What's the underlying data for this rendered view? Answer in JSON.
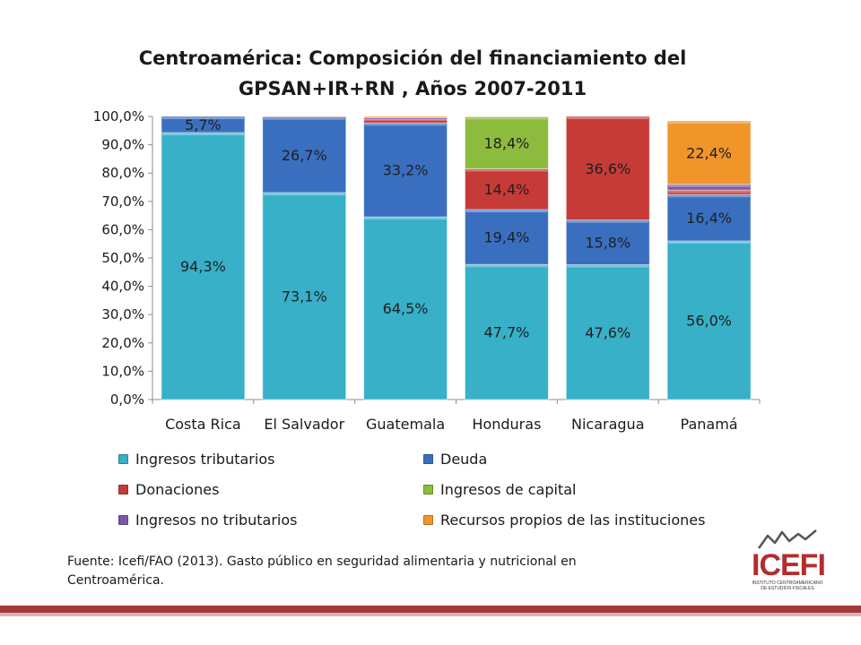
{
  "title_line1": "Centroamérica: Composición del financiamiento del",
  "title_line2": "GPSAN+IR+RN , Años 2007-2011",
  "source_text": "Fuente: Icefi/FAO (2013). Gasto público en seguridad alimentaria y nutricional en Centroamérica.",
  "logo": {
    "text": "ICEFI",
    "subtitle": "INSTITUTO CENTROAMERICANO DE ESTUDIOS FISCALES"
  },
  "legend": [
    {
      "label": "Ingresos tributarios",
      "color": "#37b0c8"
    },
    {
      "label": "Deuda",
      "color": "#3a6fc0"
    },
    {
      "label": "Donaciones",
      "color": "#c63b38"
    },
    {
      "label": "Ingresos de capital",
      "color": "#8dbb3e"
    },
    {
      "label": "Ingresos no tributarios",
      "color": "#7c59a8"
    },
    {
      "label": "Recursos propios de las instituciones",
      "color": "#f0952a"
    }
  ],
  "chart_data": {
    "type": "bar",
    "stacked": true,
    "title": "Centroamérica: Composición del financiamiento del GPSAN+IR+RN , Años 2007-2011",
    "categories": [
      "Costa Rica",
      "El Salvador",
      "Guatemala",
      "Honduras",
      "Nicaragua",
      "Panamá"
    ],
    "y_ticks": [
      "0,0%",
      "10,0%",
      "20,0%",
      "30,0%",
      "40,0%",
      "50,0%",
      "60,0%",
      "70,0%",
      "80,0%",
      "90,0%",
      "100,0%"
    ],
    "ylim": [
      0,
      100
    ],
    "series": [
      {
        "name": "Ingresos tributarios",
        "color": "#37b0c8",
        "values": [
          94.3,
          73.1,
          64.5,
          47.7,
          47.6,
          56.0
        ],
        "labels": [
          "94,3%",
          "73,1%",
          "64,5%",
          "47,7%",
          "47,6%",
          "56,0%"
        ]
      },
      {
        "name": "Deuda",
        "color": "#3a6fc0",
        "values": [
          5.7,
          26.7,
          33.2,
          19.4,
          15.8,
          16.4
        ],
        "labels": [
          "5,7%",
          "26,7%",
          "33,2%",
          "19,4%",
          "15,8%",
          "16,4%"
        ]
      },
      {
        "name": "Donaciones",
        "color": "#c63b38",
        "values": [
          0,
          0.2,
          1.1,
          14.4,
          36.6,
          1.6
        ],
        "labels": [
          "",
          "",
          "",
          "14,4%",
          "36,6%",
          ""
        ]
      },
      {
        "name": "Ingresos de capital",
        "color": "#8dbb3e",
        "values": [
          0,
          0,
          0,
          18.4,
          0,
          0
        ],
        "labels": [
          "",
          "",
          "",
          "18,4%",
          "",
          ""
        ]
      },
      {
        "name": "Ingresos no tributarios",
        "color": "#7c59a8",
        "values": [
          0,
          0,
          0.7,
          0,
          0,
          2.0
        ],
        "labels": [
          "",
          "",
          "",
          "",
          "",
          ""
        ]
      },
      {
        "name": "Recursos propios de las instituciones",
        "color": "#f0952a",
        "values": [
          0,
          0,
          0.5,
          0.1,
          0,
          22.4
        ],
        "labels": [
          "",
          "",
          "",
          "",
          "",
          "22,4%"
        ]
      }
    ]
  }
}
